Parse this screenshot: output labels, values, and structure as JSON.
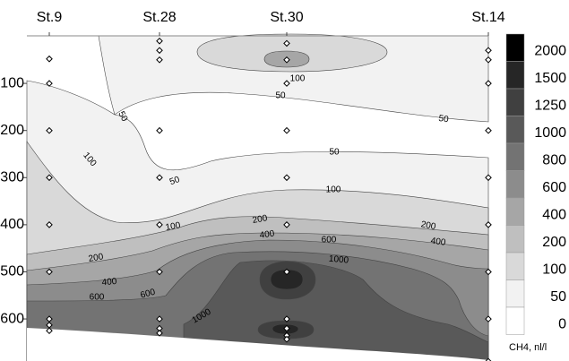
{
  "chart_data": {
    "type": "contour",
    "categories": [
      "St.9",
      "St.28",
      "St.30",
      "St.14"
    ],
    "sample_depths": [
      [
        -48,
        -100,
        -200,
        -300,
        -400,
        -500,
        -600,
        -613,
        -625
      ],
      [
        -10,
        -30,
        -50,
        -200,
        -300,
        -400,
        -500,
        -600,
        -620,
        -630
      ],
      [
        -15,
        -50,
        -100,
        -200,
        -300,
        -400,
        -500,
        -600,
        -620,
        -635,
        -643
      ],
      [
        -30,
        -50,
        -100,
        -200,
        -300,
        -400,
        -500,
        -600,
        -690
      ]
    ],
    "ylim": [
      -690,
      0
    ],
    "yticks": [
      -100,
      -200,
      -300,
      -400,
      -500,
      -600
    ],
    "colorbar": {
      "levels": [
        0,
        50,
        100,
        200,
        400,
        600,
        800,
        1000,
        1250,
        1500,
        2000
      ],
      "colors": [
        "#ffffff",
        "#f2f2f2",
        "#d9d9d9",
        "#bfbfbf",
        "#a6a6a6",
        "#8c8c8c",
        "#737373",
        "#595959",
        "#404040",
        "#262626",
        "#000000"
      ],
      "label": "CH4, nl/l"
    },
    "contour_labels": [
      50,
      50,
      50,
      50,
      50,
      100,
      100,
      100,
      100,
      200,
      200,
      400,
      400,
      600,
      1000,
      200,
      400,
      600,
      600,
      1000
    ]
  }
}
